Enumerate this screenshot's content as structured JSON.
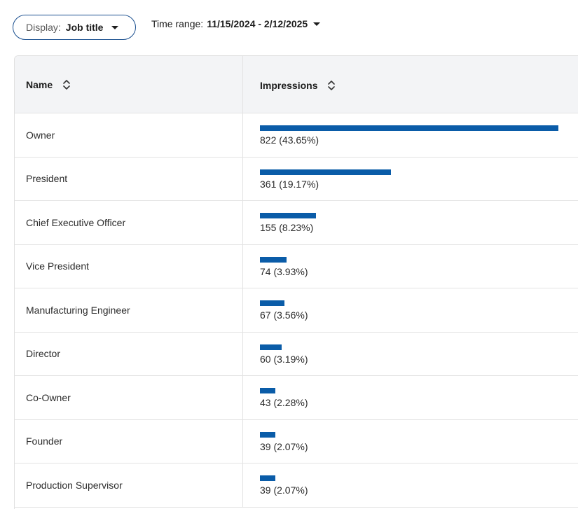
{
  "toolbar": {
    "display_label": "Display:",
    "display_value": "Job title",
    "time_range_label": "Time range:",
    "time_range_value": "11/15/2024 - 2/12/2025"
  },
  "table": {
    "columns": {
      "name": "Name",
      "impressions": "Impressions"
    },
    "rows": [
      {
        "name": "Owner",
        "value": 822,
        "label": "822 (43.65%)"
      },
      {
        "name": "President",
        "value": 361,
        "label": "361 (19.17%)"
      },
      {
        "name": "Chief Executive Officer",
        "value": 155,
        "label": "155 (8.23%)"
      },
      {
        "name": "Vice President",
        "value": 74,
        "label": "74 (3.93%)"
      },
      {
        "name": "Manufacturing Engineer",
        "value": 67,
        "label": "67 (3.56%)"
      },
      {
        "name": "Director",
        "value": 60,
        "label": "60 (3.19%)"
      },
      {
        "name": "Co-Owner",
        "value": 43,
        "label": "43 (2.28%)"
      },
      {
        "name": "Founder",
        "value": 39,
        "label": "39 (2.07%)"
      },
      {
        "name": "Production Supervisor",
        "value": 39,
        "label": "39 (2.07%)"
      }
    ]
  },
  "colors": {
    "bar": "#0a5ca8",
    "pill_border": "#1a4f8f",
    "header_bg": "#f3f4f6"
  }
}
